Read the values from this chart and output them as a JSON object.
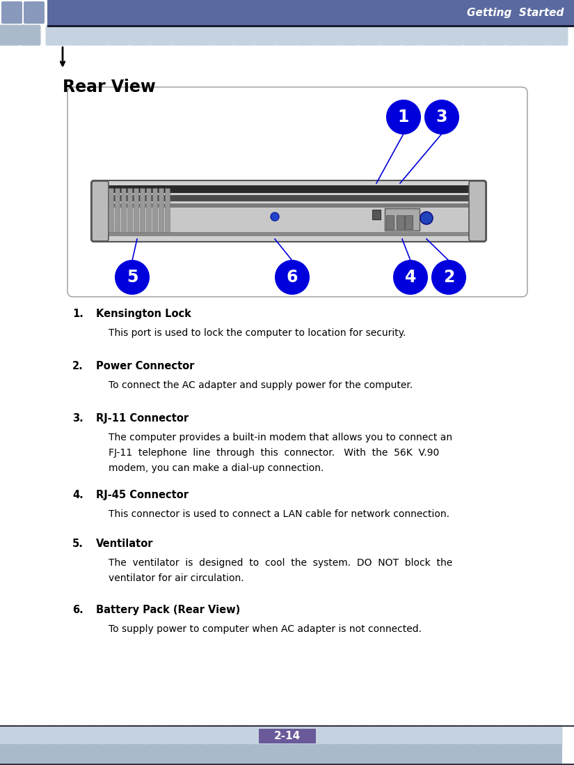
{
  "header_text": "Getting  Started",
  "header_bg": "#5a6aa0",
  "header_text_color": "#ffffff",
  "tile_color": "#c5d3e0",
  "tile_color_dark": "#aabacb",
  "footer_bar_color": "#6a5a9a",
  "footer_text": "2-14",
  "footer_text_color": "#ffffff",
  "page_bg": "#ffffff",
  "section_title": "Rear View",
  "box_border": "#aaaaaa",
  "callout_color": "#0000dd",
  "callout_text_color": "#ffffff",
  "items": [
    {
      "num": "1",
      "bold": "Kensington Lock",
      "text": "This port is used to lock the computer to location for security."
    },
    {
      "num": "2",
      "bold": "Power Connector",
      "text": "To connect the AC adapter and supply power for the computer."
    },
    {
      "num": "3",
      "bold": "RJ-11 Connector",
      "text_lines": [
        "The computer provides a built-in modem that allows you to connect an",
        "FJ-11  telephone  line  through  this  connector.   With  the  56K  V.90",
        "modem, you can make a dial-up connection."
      ]
    },
    {
      "num": "4",
      "bold": "RJ-45 Connector",
      "text": "This connector is used to connect a LAN cable for network connection."
    },
    {
      "num": "5",
      "bold": "Ventilator",
      "text_lines": [
        "The  ventilator  is  designed  to  cool  the  system.  DO  NOT  block  the",
        "ventilator for air circulation."
      ]
    },
    {
      "num": "6",
      "bold": "Battery Pack (Rear View)",
      "text": "To supply power to computer when AC adapter is not connected."
    }
  ]
}
